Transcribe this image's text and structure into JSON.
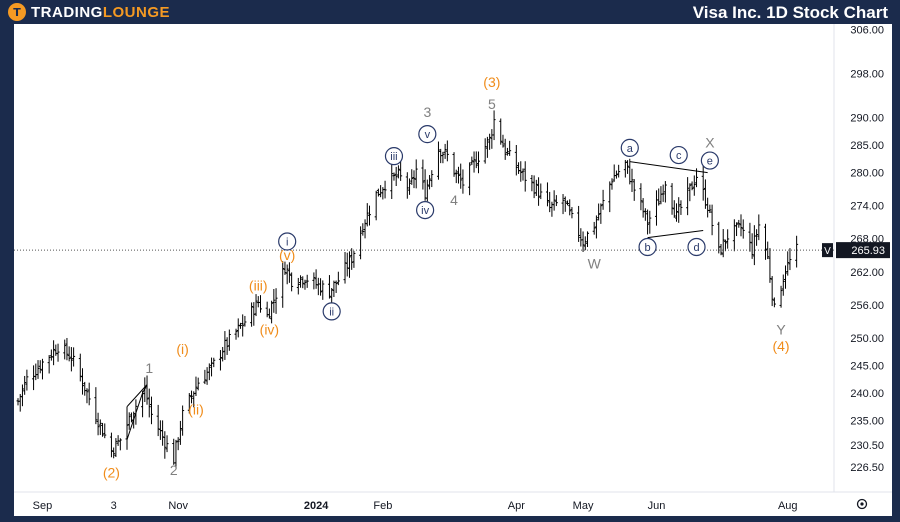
{
  "header": {
    "logo_text_part1": "TradingLounge",
    "logo_mark": "T",
    "title": "Visa Inc. 1D Stock Chart"
  },
  "chart_data": {
    "type": "bar",
    "style": "ohlc-daily",
    "colors": {
      "bars": "#000000",
      "grid_dotted": "#555555",
      "orange_labels": "#f08c1a",
      "gray_labels": "#808080",
      "circle_labels": "#2a3a6a",
      "background": "#ffffff"
    },
    "grid": false,
    "ylim": [
      222,
      307
    ],
    "y_ticks": [
      306.0,
      298.0,
      290.0,
      285.0,
      280.0,
      274.0,
      268.0,
      262.0,
      256.0,
      250.0,
      245.0,
      240.0,
      235.0,
      230.5,
      226.5
    ],
    "x_tick_labels": [
      {
        "label": "Sep",
        "date": "2023-09-01",
        "bold": false
      },
      {
        "label": "3",
        "date": "2023-10-03",
        "bold": false
      },
      {
        "label": "Nov",
        "date": "2023-11-01",
        "bold": false
      },
      {
        "label": "2024",
        "date": "2024-01-02",
        "bold": true
      },
      {
        "label": "Feb",
        "date": "2024-02-01",
        "bold": false
      },
      {
        "label": "Apr",
        "date": "2024-04-01",
        "bold": false
      },
      {
        "label": "May",
        "date": "2024-05-01",
        "bold": false
      },
      {
        "label": "Jun",
        "date": "2024-06-03",
        "bold": false
      },
      {
        "label": "Aug",
        "date": "2024-08-01",
        "bold": false
      }
    ],
    "x_range": [
      "2023-08-21",
      "2024-08-20"
    ],
    "price_line": {
      "value": 265.93,
      "ticker": "V",
      "label": "265.93"
    },
    "path_anchors": [
      [
        "2023-08-21",
        238.5
      ],
      [
        "2023-08-25",
        242.5
      ],
      [
        "2023-09-01",
        245.5
      ],
      [
        "2023-09-08",
        248.5
      ],
      [
        "2023-09-14",
        246.5
      ],
      [
        "2023-09-19",
        242.0
      ],
      [
        "2023-09-26",
        235.0
      ],
      [
        "2023-10-02",
        229.5
      ],
      [
        "2023-10-06",
        231.5
      ],
      [
        "2023-10-12",
        237.0
      ],
      [
        "2023-10-17",
        240.5
      ],
      [
        "2023-10-20",
        236.0
      ],
      [
        "2023-10-25",
        232.0
      ],
      [
        "2023-10-30",
        228.0
      ],
      [
        "2023-11-03",
        236.0
      ],
      [
        "2023-11-10",
        242.0
      ],
      [
        "2023-11-16",
        244.5
      ],
      [
        "2023-11-21",
        248.0
      ],
      [
        "2023-11-28",
        251.5
      ],
      [
        "2023-12-01",
        253.0
      ],
      [
        "2023-12-07",
        256.5
      ],
      [
        "2023-12-11",
        254.0
      ],
      [
        "2023-12-15",
        258.0
      ],
      [
        "2023-12-19",
        263.0
      ],
      [
        "2023-12-22",
        260.5
      ],
      [
        "2023-12-28",
        261.0
      ],
      [
        "2024-01-03",
        259.5
      ],
      [
        "2024-01-08",
        258.5
      ],
      [
        "2024-01-12",
        260.5
      ],
      [
        "2024-01-18",
        264.5
      ],
      [
        "2024-01-23",
        270.5
      ],
      [
        "2024-01-29",
        276.0
      ],
      [
        "2024-02-02",
        278.0
      ],
      [
        "2024-02-08",
        279.5
      ],
      [
        "2024-02-13",
        277.0
      ],
      [
        "2024-02-16",
        280.5
      ],
      [
        "2024-02-20",
        276.5
      ],
      [
        "2024-02-26",
        284.5
      ],
      [
        "2024-03-01",
        283.0
      ],
      [
        "2024-03-05",
        279.5
      ],
      [
        "2024-03-08",
        278.0
      ],
      [
        "2024-03-12",
        281.0
      ],
      [
        "2024-03-15",
        283.0
      ],
      [
        "2024-03-20",
        286.0
      ],
      [
        "2024-03-22",
        289.5
      ],
      [
        "2024-03-27",
        284.0
      ],
      [
        "2024-04-03",
        280.0
      ],
      [
        "2024-04-10",
        277.0
      ],
      [
        "2024-04-16",
        273.5
      ],
      [
        "2024-04-22",
        275.0
      ],
      [
        "2024-04-26",
        271.5
      ],
      [
        "2024-05-01",
        267.5
      ],
      [
        "2024-05-06",
        270.5
      ],
      [
        "2024-05-10",
        274.5
      ],
      [
        "2024-05-14",
        279.0
      ],
      [
        "2024-05-20",
        281.5
      ],
      [
        "2024-05-24",
        277.0
      ],
      [
        "2024-05-30",
        271.0
      ],
      [
        "2024-06-04",
        275.0
      ],
      [
        "2024-06-07",
        278.5
      ],
      [
        "2024-06-12",
        272.0
      ],
      [
        "2024-06-17",
        276.0
      ],
      [
        "2024-06-21",
        279.5
      ],
      [
        "2024-06-26",
        274.0
      ],
      [
        "2024-07-01",
        265.5
      ],
      [
        "2024-07-05",
        268.5
      ],
      [
        "2024-07-11",
        270.0
      ],
      [
        "2024-07-16",
        266.0
      ],
      [
        "2024-07-19",
        270.5
      ],
      [
        "2024-07-23",
        264.5
      ],
      [
        "2024-07-26",
        255.0
      ],
      [
        "2024-07-31",
        262.5
      ],
      [
        "2024-08-05",
        265.9
      ]
    ],
    "annotations": [
      {
        "text": "(2)",
        "date": "2023-10-02",
        "price": 225.5,
        "style": "orange"
      },
      {
        "text": "1",
        "date": "2023-10-19",
        "price": 244.5,
        "style": "gray"
      },
      {
        "text": "2",
        "date": "2023-10-30",
        "price": 226.0,
        "style": "gray"
      },
      {
        "text": "(i)",
        "date": "2023-11-03",
        "price": 248.0,
        "style": "orange"
      },
      {
        "text": "(ii)",
        "date": "2023-11-09",
        "price": 237.0,
        "style": "orange"
      },
      {
        "text": "(iii)",
        "date": "2023-12-07",
        "price": 259.5,
        "style": "orange"
      },
      {
        "text": "(iv)",
        "date": "2023-12-12",
        "price": 251.5,
        "style": "orange"
      },
      {
        "text": "(v)",
        "date": "2023-12-20",
        "price": 265.0,
        "style": "orange"
      },
      {
        "text": "i",
        "date": "2023-12-20",
        "price": 267.5,
        "style": "circle"
      },
      {
        "text": "ii",
        "date": "2024-01-09",
        "price": 254.8,
        "style": "circle"
      },
      {
        "text": "iii",
        "date": "2024-02-06",
        "price": 283.0,
        "style": "circle"
      },
      {
        "text": "iv",
        "date": "2024-02-20",
        "price": 273.2,
        "style": "circle"
      },
      {
        "text": "v",
        "date": "2024-02-21",
        "price": 287.0,
        "style": "circle"
      },
      {
        "text": "3",
        "date": "2024-02-21",
        "price": 291.0,
        "style": "gray"
      },
      {
        "text": "4",
        "date": "2024-03-04",
        "price": 275.0,
        "style": "gray"
      },
      {
        "text": "5",
        "date": "2024-03-21",
        "price": 292.5,
        "style": "gray"
      },
      {
        "text": "(3)",
        "date": "2024-03-21",
        "price": 296.5,
        "style": "orange"
      },
      {
        "text": "W",
        "date": "2024-05-06",
        "price": 263.5,
        "style": "gray"
      },
      {
        "text": "a",
        "date": "2024-05-22",
        "price": 284.5,
        "style": "circle"
      },
      {
        "text": "b",
        "date": "2024-05-30",
        "price": 266.5,
        "style": "circle"
      },
      {
        "text": "c",
        "date": "2024-06-13",
        "price": 283.2,
        "style": "circle"
      },
      {
        "text": "d",
        "date": "2024-06-21",
        "price": 266.5,
        "style": "circle"
      },
      {
        "text": "e",
        "date": "2024-06-27",
        "price": 282.2,
        "style": "circle"
      },
      {
        "text": "X",
        "date": "2024-06-27",
        "price": 285.5,
        "style": "gray"
      },
      {
        "text": "Y",
        "date": "2024-07-29",
        "price": 251.5,
        "style": "gray"
      },
      {
        "text": "(4)",
        "date": "2024-07-29",
        "price": 248.5,
        "style": "orange"
      }
    ],
    "trendlines": [
      {
        "from": [
          "2024-05-22",
          282.0
        ],
        "to": [
          "2024-06-26",
          280.0
        ]
      },
      {
        "from": [
          "2024-05-30",
          268.2
        ],
        "to": [
          "2024-06-24",
          269.5
        ]
      },
      {
        "from": [
          "2023-10-09",
          231.5
        ],
        "to": [
          "2023-10-16",
          240.0
        ]
      },
      {
        "from": [
          "2023-10-09",
          237.5
        ],
        "to": [
          "2023-10-18",
          241.5
        ]
      },
      {
        "from": [
          "2023-10-09",
          231.5
        ],
        "to": [
          "2023-10-09",
          237.5
        ]
      },
      {
        "from": [
          "2023-10-16",
          240.0
        ],
        "to": [
          "2023-10-18",
          241.5
        ]
      }
    ]
  }
}
